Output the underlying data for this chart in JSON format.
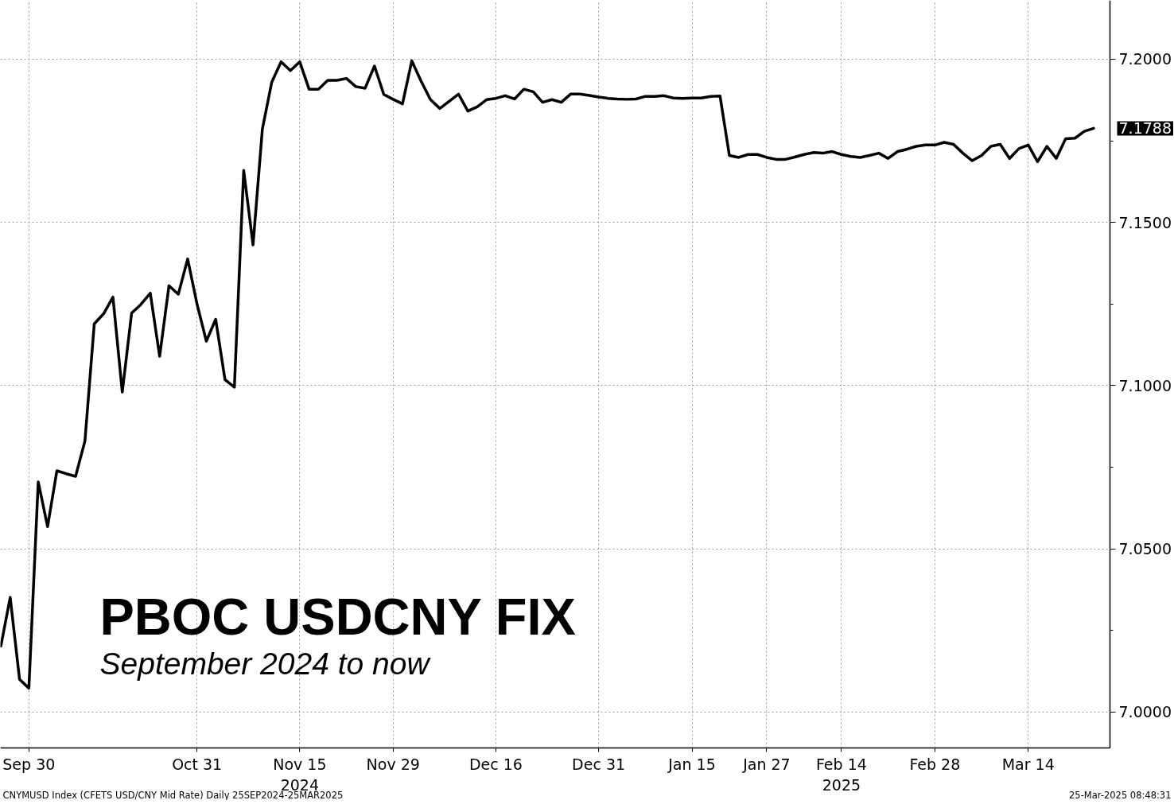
{
  "chart_data": {
    "type": "line",
    "title": "PBOC USDCNY FIX",
    "subtitle": "September 2024 to now",
    "categories": [
      null,
      null,
      null,
      "Sep 30",
      null,
      null,
      null,
      null,
      null,
      null,
      null,
      null,
      null,
      null,
      null,
      null,
      null,
      null,
      null,
      null,
      null,
      "Oct 31",
      null,
      null,
      null,
      null,
      null,
      null,
      null,
      null,
      null,
      null,
      "Nov 15\n2024",
      null,
      null,
      null,
      null,
      null,
      null,
      null,
      null,
      null,
      "Nov 29",
      null,
      null,
      null,
      null,
      null,
      null,
      null,
      null,
      null,
      null,
      "Dec 16",
      null,
      null,
      null,
      null,
      null,
      null,
      null,
      null,
      null,
      null,
      "Dec 31",
      null,
      null,
      null,
      null,
      null,
      null,
      null,
      null,
      null,
      "Jan 15",
      null,
      null,
      null,
      null,
      null,
      null,
      null,
      "Jan 27",
      null,
      null,
      null,
      null,
      null,
      null,
      null,
      "Feb 14\n2025",
      null,
      null,
      null,
      null,
      null,
      null,
      null,
      null,
      null,
      "Feb 28",
      null,
      null,
      null,
      null,
      null,
      null,
      null,
      null,
      null,
      "Mar 14",
      null,
      null,
      null,
      null,
      null,
      null,
      null
    ],
    "series": [
      {
        "color": "#000000",
        "values": [
          7.0202,
          7.0351,
          7.01,
          7.0073,
          7.0705,
          7.0568,
          7.0739,
          7.073,
          7.0722,
          7.083,
          7.1189,
          7.122,
          7.1271,
          7.098,
          7.1222,
          7.1249,
          7.1283,
          7.109,
          7.1306,
          7.128,
          7.1388,
          7.125,
          7.1136,
          7.1203,
          7.1018,
          7.0995,
          7.1659,
          7.1431,
          7.1786,
          7.1929,
          7.1992,
          7.1965,
          7.1992,
          7.1908,
          7.1908,
          7.1935,
          7.1935,
          7.1941,
          7.1916,
          7.1911,
          7.1979,
          7.1892,
          7.1877,
          7.1863,
          7.1995,
          7.1932,
          7.1876,
          7.1849,
          7.1871,
          7.1893,
          7.1841,
          7.1854,
          7.1876,
          7.188,
          7.1888,
          7.1878,
          7.1908,
          7.19,
          7.1868,
          7.1876,
          7.1868,
          7.1893,
          7.1893,
          7.1889,
          7.1884,
          7.188,
          7.1878,
          7.1877,
          7.1878,
          7.1886,
          7.1886,
          7.1888,
          7.1881,
          7.188,
          7.1881,
          7.1881,
          7.1886,
          7.1887,
          7.1705,
          7.1699,
          7.1708,
          7.1708,
          7.1699,
          7.1693,
          7.1693,
          7.17,
          7.1708,
          7.1714,
          7.1712,
          7.1717,
          7.1708,
          7.1702,
          7.1699,
          7.1705,
          7.1712,
          7.1696,
          7.1717,
          7.1724,
          7.1733,
          7.1737,
          7.1737,
          7.1745,
          7.1739,
          7.1712,
          7.1689,
          7.1705,
          7.1733,
          7.1739,
          7.1696,
          7.1726,
          7.1737,
          7.1686,
          7.1733,
          7.1696,
          7.1756,
          7.1758,
          7.1779,
          7.1788
        ],
        "value_labels": [
          null,
          null,
          null,
          null,
          null,
          null,
          null,
          null,
          null,
          null,
          null,
          null,
          null,
          null,
          null,
          null,
          null,
          null,
          null,
          null,
          null,
          null,
          null,
          null,
          null,
          null,
          null,
          null,
          null,
          null,
          null,
          null,
          null,
          null,
          null,
          null,
          null,
          null,
          null,
          null,
          null,
          null,
          null,
          null,
          null,
          null,
          null,
          null,
          null,
          null,
          null,
          null,
          null,
          null,
          null,
          null,
          null,
          null,
          null,
          null,
          null,
          null,
          null,
          null,
          null,
          null,
          null,
          null,
          null,
          null,
          null,
          null,
          null,
          null,
          null,
          null,
          null,
          null,
          null,
          null,
          null,
          null,
          null,
          null,
          null,
          null,
          null,
          null,
          null,
          null,
          null,
          null,
          null,
          null,
          null,
          null,
          null,
          null,
          null,
          null,
          null,
          null,
          null,
          null,
          null,
          null,
          null,
          null,
          null,
          null,
          null,
          null,
          null,
          null,
          null,
          null,
          null,
          "7.1788"
        ]
      }
    ],
    "ylim": [
      6.989,
      7.218
    ],
    "yticks": [
      {
        "value": 7.0,
        "label": "7.0000"
      },
      {
        "value": 7.025,
        "label": null
      },
      {
        "value": 7.05,
        "label": "7.0500"
      },
      {
        "value": 7.075,
        "label": null
      },
      {
        "value": 7.1,
        "label": "7.1000"
      },
      {
        "value": 7.125,
        "label": null
      },
      {
        "value": 7.15,
        "label": "7.1500"
      },
      {
        "value": 7.175,
        "label": null
      },
      {
        "value": 7.2,
        "label": "7.2000"
      }
    ],
    "grid": true,
    "line_style": "solid",
    "annotations": [
      "CNYMUSD Index (CFETS USD/CNY Mid Rate)  Daily 25SEP2024-25MAR2025",
      "25-Mar-2025 08:48:31"
    ]
  }
}
